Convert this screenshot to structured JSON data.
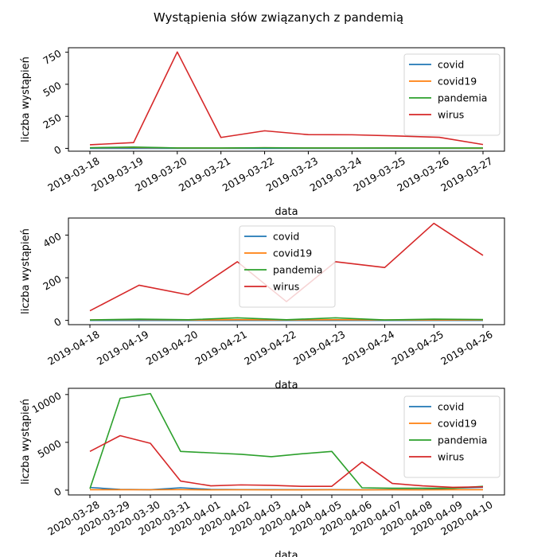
{
  "figure_title": "Wystąpienia słów związanych z pandemią",
  "chart_data": [
    {
      "type": "line",
      "xlabel": "data",
      "ylabel": "liczba wystąpień",
      "x": [
        "2019-03-18",
        "2019-03-19",
        "2019-03-20",
        "2019-03-21",
        "2019-03-22",
        "2019-03-23",
        "2019-03-24",
        "2019-03-25",
        "2019-03-26",
        "2019-03-27"
      ],
      "ylim": [
        -22,
        785
      ],
      "yticks": [
        0,
        250,
        500,
        750
      ],
      "legend": "upper-right",
      "series": [
        {
          "name": "covid",
          "color": "#1f77b4",
          "values": [
            0,
            0,
            0,
            0,
            0,
            0,
            0,
            0,
            0,
            0
          ]
        },
        {
          "name": "covid19",
          "color": "#ff7f0e",
          "values": [
            5,
            7,
            3,
            2,
            5,
            3,
            2,
            3,
            2,
            1
          ]
        },
        {
          "name": "pandemia",
          "color": "#2ca02c",
          "values": [
            5,
            10,
            3,
            3,
            5,
            3,
            3,
            3,
            3,
            3
          ]
        },
        {
          "name": "wirus",
          "color": "#d62728",
          "values": [
            28,
            45,
            752,
            85,
            137,
            107,
            106,
            97,
            86,
            30
          ]
        }
      ]
    },
    {
      "type": "line",
      "xlabel": "data",
      "ylabel": "liczba wystąpień",
      "x": [
        "2019-04-18",
        "2019-04-19",
        "2019-04-20",
        "2019-04-21",
        "2019-04-22",
        "2019-04-23",
        "2019-04-24",
        "2019-04-25",
        "2019-04-26"
      ],
      "ylim": [
        -20,
        480
      ],
      "yticks": [
        0,
        200,
        400
      ],
      "legend": "upper-center",
      "series": [
        {
          "name": "covid",
          "color": "#1f77b4",
          "values": [
            0,
            0,
            0,
            0,
            0,
            0,
            0,
            0,
            0
          ]
        },
        {
          "name": "covid19",
          "color": "#ff7f0e",
          "values": [
            2,
            4,
            2,
            3,
            2,
            3,
            2,
            2,
            2
          ]
        },
        {
          "name": "pandemia",
          "color": "#2ca02c",
          "values": [
            2,
            6,
            3,
            12,
            3,
            12,
            2,
            6,
            4
          ]
        },
        {
          "name": "wirus",
          "color": "#d62728",
          "values": [
            45,
            165,
            120,
            275,
            88,
            275,
            248,
            455,
            305
          ]
        }
      ]
    },
    {
      "type": "line",
      "xlabel": "data",
      "ylabel": "liczba wystąpień",
      "x": [
        "2020-03-28",
        "2020-03-29",
        "2020-03-30",
        "2020-03-31",
        "2020-04-01",
        "2020-04-02",
        "2020-04-03",
        "2020-04-04",
        "2020-04-05",
        "2020-04-06",
        "2020-04-07",
        "2020-04-08",
        "2020-04-09",
        "2020-04-10"
      ],
      "ylim": [
        -500,
        10650
      ],
      "yticks": [
        0,
        5000,
        10000
      ],
      "legend": "upper-right",
      "series": [
        {
          "name": "covid",
          "color": "#1f77b4",
          "values": [
            280,
            80,
            50,
            250,
            80,
            60,
            60,
            50,
            60,
            40,
            60,
            50,
            200,
            300
          ]
        },
        {
          "name": "covid19",
          "color": "#ff7f0e",
          "values": [
            50,
            50,
            40,
            60,
            30,
            40,
            30,
            30,
            40,
            30,
            40,
            30,
            50,
            50
          ]
        },
        {
          "name": "pandemia",
          "color": "#2ca02c",
          "values": [
            150,
            9600,
            10100,
            4050,
            3900,
            3750,
            3500,
            3800,
            4050,
            250,
            200,
            200,
            200,
            400
          ]
        },
        {
          "name": "wirus",
          "color": "#d62728",
          "values": [
            4050,
            5700,
            4900,
            950,
            450,
            550,
            500,
            400,
            400,
            2950,
            700,
            450,
            300,
            350
          ]
        }
      ]
    }
  ]
}
